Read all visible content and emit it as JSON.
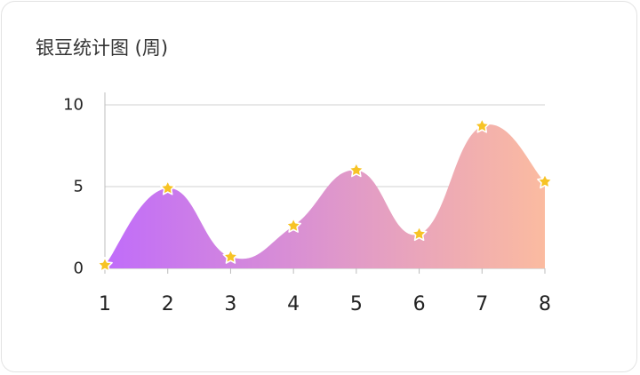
{
  "card": {
    "title": "银豆统计图 (周)"
  },
  "chart_data": {
    "type": "area",
    "title": "银豆统计图 (周)",
    "x": [
      1,
      2,
      3,
      4,
      5,
      6,
      7,
      8
    ],
    "series": [
      {
        "values": [
          0.2,
          4.9,
          0.7,
          2.6,
          6.0,
          2.1,
          8.7,
          5.3
        ]
      }
    ],
    "ylim": [
      0,
      10
    ],
    "yticks": [
      0,
      5,
      10
    ],
    "xticks": [
      1,
      2,
      3,
      4,
      5,
      6,
      7,
      8
    ],
    "grid": true,
    "smooth": true,
    "marker": "star",
    "colors": {
      "gradient_start": "#c06cfa",
      "gradient_mid": "#e099c9",
      "gradient_end": "#fbbba0",
      "marker_fill": "#f7c325",
      "marker_stroke": "#ffffff",
      "grid": "#d0d0d0",
      "axis": "#bcbcbc"
    }
  }
}
